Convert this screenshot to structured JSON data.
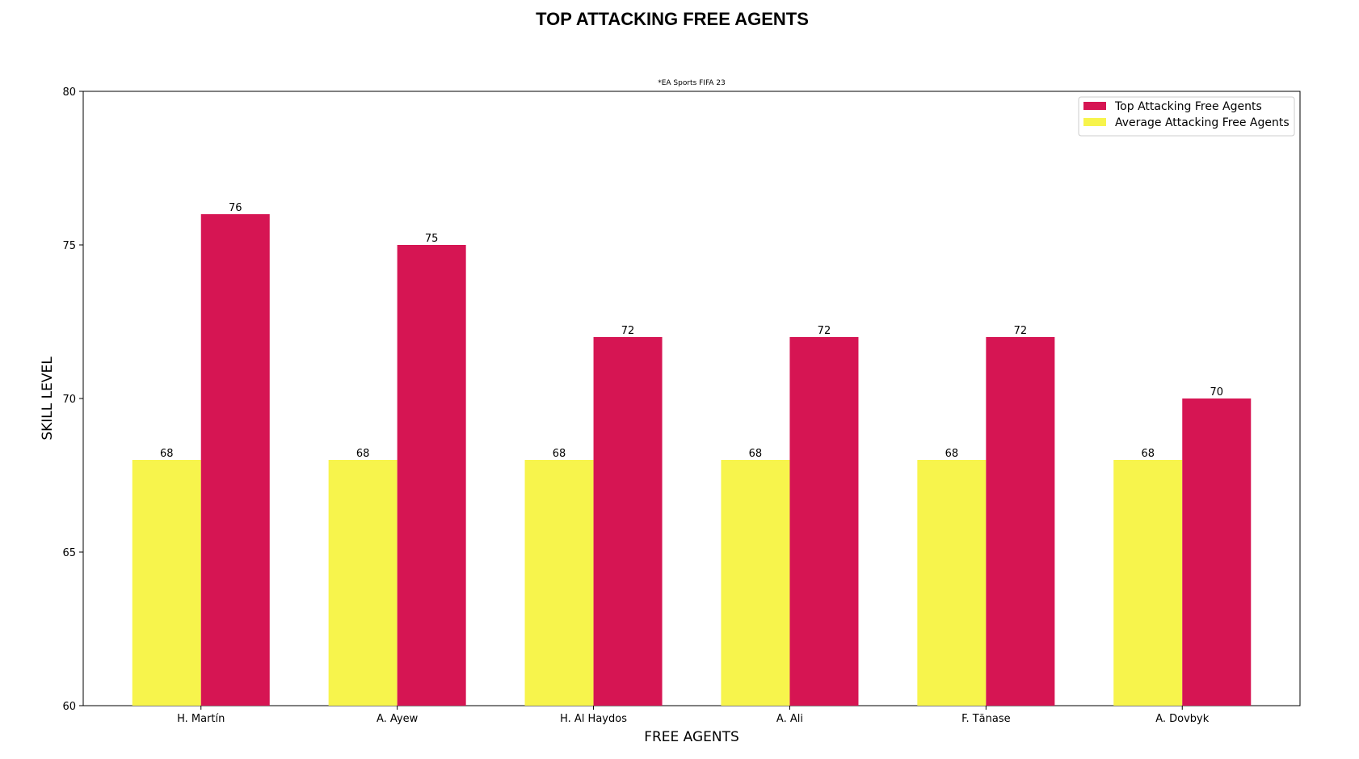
{
  "chart_data": {
    "type": "bar",
    "title": "TOP ATTACKING FREE AGENTS",
    "subtitle": "*EA Sports FIFA 23",
    "xlabel": "FREE AGENTS",
    "ylabel": "SKILL LEVEL",
    "ylim": [
      60,
      80
    ],
    "yticks": [
      60,
      65,
      70,
      75,
      80
    ],
    "categories": [
      "H. Martín",
      "A. Ayew",
      "H. Al Haydos",
      "A. Ali",
      "F. Tănase",
      "A. Dovbyk"
    ],
    "series": [
      {
        "name": "Average Attacking Free Agents",
        "color": "#f7f44c",
        "values": [
          68,
          68,
          68,
          68,
          68,
          68
        ]
      },
      {
        "name": "Top Attacking Free Agents",
        "color": "#d61553",
        "values": [
          76,
          75,
          72,
          72,
          72,
          70
        ]
      }
    ],
    "legend": {
      "placement": "top-right",
      "order": [
        "Top Attacking Free Agents",
        "Average Attacking Free Agents"
      ]
    },
    "grid": false
  }
}
